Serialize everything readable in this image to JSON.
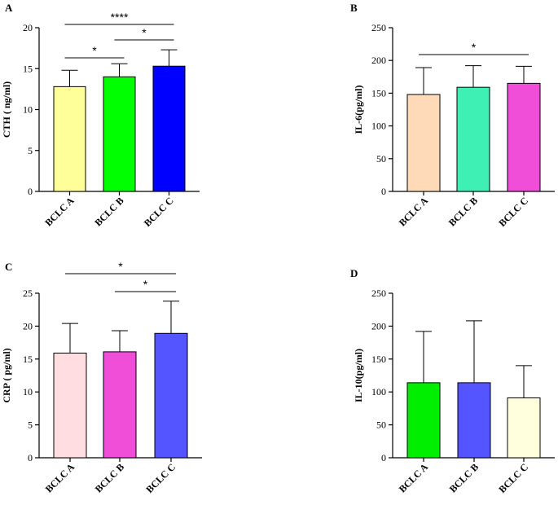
{
  "chart_data": [
    {
      "type": "bar",
      "panel": "A",
      "ylabel": "CTH ( ng/ml)",
      "categories": [
        "BCLC A",
        "BCLC B",
        "BCLC C"
      ],
      "values": [
        12.8,
        14.0,
        15.3
      ],
      "errors": [
        2.0,
        1.6,
        2.0
      ],
      "colors": [
        "#ffff99",
        "#00ff00",
        "#0000ff"
      ],
      "ylim": [
        0,
        20
      ],
      "yticks": [
        0,
        5,
        10,
        15,
        20
      ],
      "significance": [
        {
          "from": 0,
          "to": 2,
          "label": "****"
        },
        {
          "from": 0,
          "to": 1,
          "label": "*"
        },
        {
          "from": 1,
          "to": 2,
          "label": "*"
        }
      ]
    },
    {
      "type": "bar",
      "panel": "B",
      "ylabel": "IL-6(pg/ml)",
      "categories": [
        "BCLC A",
        "BCLC B",
        "BCLC C"
      ],
      "values": [
        148,
        159,
        165
      ],
      "errors": [
        41,
        33,
        26
      ],
      "colors": [
        "#ffdab9",
        "#3ef0b4",
        "#f04dd8"
      ],
      "ylim": [
        0,
        250
      ],
      "yticks": [
        0,
        50,
        100,
        150,
        200,
        250
      ],
      "significance": [
        {
          "from": 0,
          "to": 2,
          "label": "*"
        }
      ]
    },
    {
      "type": "bar",
      "panel": "C",
      "ylabel": "CRP ( pg/ml)",
      "categories": [
        "BCLC A",
        "BCLC B",
        "BCLC C"
      ],
      "values": [
        15.9,
        16.1,
        18.9
      ],
      "errors": [
        4.5,
        3.2,
        4.9
      ],
      "colors": [
        "#ffdde1",
        "#f04dd8",
        "#5555ff"
      ],
      "ylim": [
        0,
        25
      ],
      "yticks": [
        0,
        5,
        10,
        15,
        20,
        25
      ],
      "significance": [
        {
          "from": 0,
          "to": 2,
          "label": "*"
        },
        {
          "from": 1,
          "to": 2,
          "label": "*"
        }
      ]
    },
    {
      "type": "bar",
      "panel": "D",
      "ylabel": "IL-10(pg/ml)",
      "categories": [
        "BCLC A",
        "BCLC B",
        "BCLC C"
      ],
      "values": [
        114,
        114,
        91
      ],
      "errors": [
        78,
        94,
        49
      ],
      "colors": [
        "#00ee00",
        "#5555ff",
        "#ffffdd"
      ],
      "ylim": [
        0,
        250
      ],
      "yticks": [
        0,
        50,
        100,
        150,
        200,
        250
      ],
      "significance": []
    }
  ]
}
